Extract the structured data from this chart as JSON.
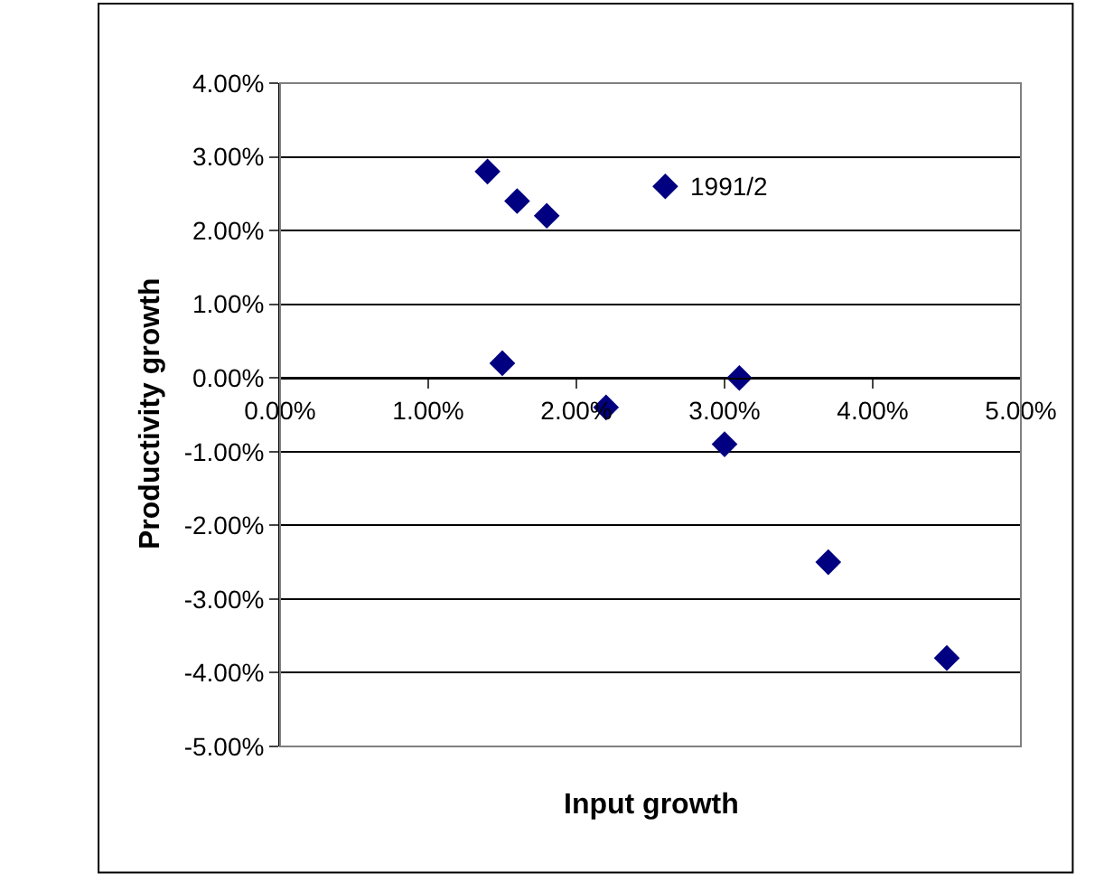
{
  "chart_data": {
    "type": "scatter",
    "xlabel": "Input growth",
    "ylabel": "Productivity growth",
    "x": [
      1.4,
      1.6,
      1.8,
      2.6,
      1.5,
      2.2,
      3.1,
      3.0,
      3.7,
      4.5
    ],
    "series": [
      {
        "color": "#000080",
        "values": [
          2.8,
          2.4,
          2.2,
          2.6,
          0.2,
          -0.4,
          0.0,
          -0.9,
          -2.5,
          -3.8
        ]
      }
    ],
    "marker": "diamond",
    "grid": "y",
    "legend": false,
    "xlim": [
      0,
      5
    ],
    "xticks": [
      {
        "value": 0,
        "label": "0.00%"
      },
      {
        "value": 1,
        "label": "1.00%"
      },
      {
        "value": 2,
        "label": "2.00%"
      },
      {
        "value": 3,
        "label": "3.00%"
      },
      {
        "value": 4,
        "label": "4.00%"
      },
      {
        "value": 5,
        "label": "5.00%"
      }
    ],
    "ylim": [
      -5,
      4
    ],
    "yticks": [
      {
        "value": -5,
        "label": "-5.00%"
      },
      {
        "value": -4,
        "label": "-4.00%"
      },
      {
        "value": -3,
        "label": "-3.00%"
      },
      {
        "value": -2,
        "label": "-2.00%"
      },
      {
        "value": -1,
        "label": "-1.00%"
      },
      {
        "value": 0,
        "label": "0.00%"
      },
      {
        "value": 1,
        "label": "1.00%"
      },
      {
        "value": 2,
        "label": "2.00%"
      },
      {
        "value": 3,
        "label": "3.00%"
      },
      {
        "value": 4,
        "label": "4.00%"
      }
    ],
    "annotations": [
      {
        "text": "1991/2",
        "x": 2.6,
        "y": 2.6
      }
    ]
  }
}
